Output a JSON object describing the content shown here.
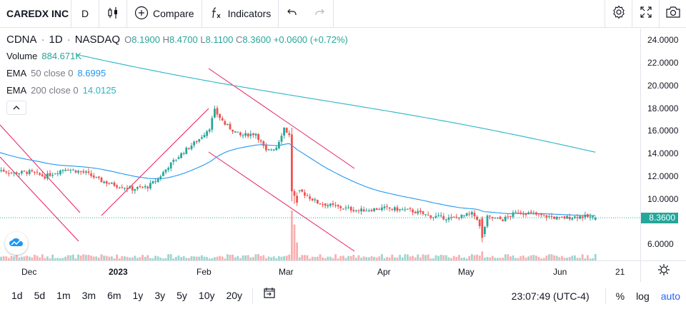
{
  "toolbar": {
    "symbol": "CAREDX INC",
    "interval": "D",
    "compare_label": "Compare",
    "indicators_label": "Indicators",
    "icons": [
      "candles-icon",
      "plus-circle-icon",
      "fx-icon",
      "undo-icon",
      "redo-icon",
      "settings-icon",
      "fullscreen-icon",
      "camera-icon"
    ]
  },
  "legend": {
    "ticker": "CDNA",
    "interval": "1D",
    "exchange": "NASDAQ",
    "o_key": "O",
    "o": "8.1900",
    "h_key": "H",
    "h": "8.4700",
    "l_key": "L",
    "l": "8.1100",
    "c_key": "C",
    "c": "8.3600",
    "change": "+0.0600 (+0.72%)",
    "volume_label": "Volume",
    "volume_value": "884.671K",
    "ema50_label": "EMA",
    "ema50_params": "50 close 0",
    "ema50_value": "8.6995",
    "ema200_label": "EMA",
    "ema200_params": "200 close 0",
    "ema200_value": "14.0125"
  },
  "price_axis": {
    "labels": [
      "24.0000",
      "22.0000",
      "20.0000",
      "18.0000",
      "16.0000",
      "14.0000",
      "12.0000",
      "10.0000",
      "6.0000"
    ],
    "last_price": "8.3600"
  },
  "time_axis": {
    "labels": [
      "Dec",
      "2023",
      "Feb",
      "Mar",
      "Apr",
      "May",
      "Jun",
      "21"
    ]
  },
  "bottombar": {
    "ranges": [
      "1d",
      "5d",
      "1m",
      "3m",
      "6m",
      "1y",
      "3y",
      "5y",
      "10y",
      "20y"
    ],
    "clock": "23:07:49 (UTC-4)",
    "percent": "%",
    "log": "log",
    "auto": "auto"
  },
  "colors": {
    "up": "#26a69a",
    "down": "#ef5350",
    "ema50": "#2196f3",
    "ema200": "#29b6c6",
    "trendlines": "#e91e63",
    "accent": "#2962ff"
  },
  "chart_data": {
    "type": "candlestick",
    "ylim": [
      4.5,
      25
    ],
    "last_price": 8.36,
    "x_start": "2022-11-16",
    "candles": []
  }
}
